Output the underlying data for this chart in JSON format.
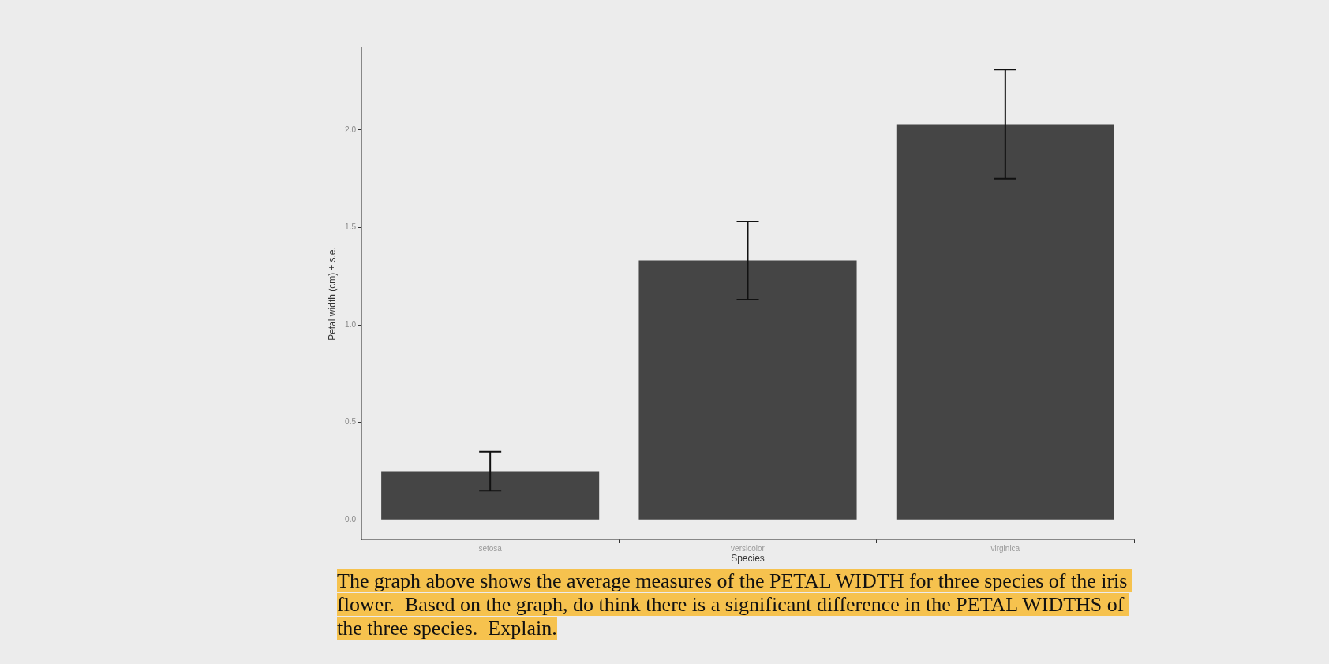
{
  "chart_data": {
    "type": "bar",
    "categories": [
      "setosa",
      "versicolor",
      "virginica"
    ],
    "values": [
      0.25,
      1.33,
      2.03
    ],
    "errors": [
      0.1,
      0.2,
      0.28
    ],
    "color": "#454545",
    "xlabel": "Species",
    "ylabel": "Petal width (cm) ± s.e.",
    "ylim": [
      -0.1,
      2.42
    ],
    "yticks": [
      {
        "value": 0,
        "label": "0.0"
      },
      0.5,
      {
        "value": 1,
        "label": "1.0"
      },
      1.5,
      {
        "value": 2,
        "label": "2.0"
      }
    ],
    "annotations": [
      "The graph above shows the average measures of the PETAL WIDTH for three species of the iris flower.  Based on the graph, do think there is a significant difference in the PETAL WIDTHS of the three species.  Explain."
    ]
  }
}
